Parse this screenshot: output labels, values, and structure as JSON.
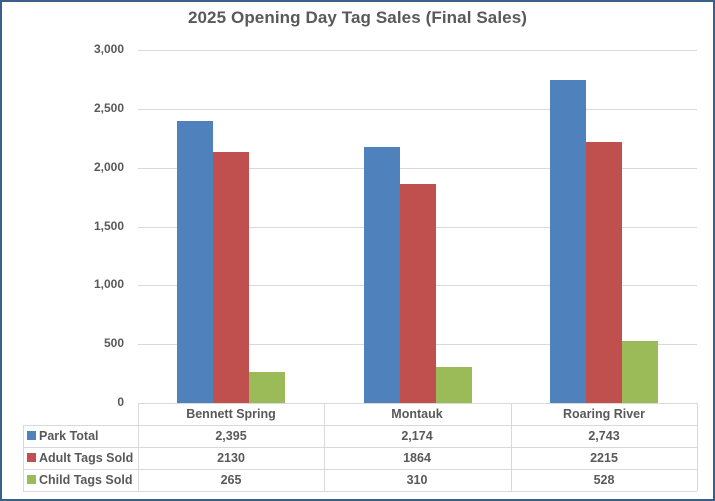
{
  "chart_data": {
    "type": "bar",
    "title": "2025 Opening Day Tag Sales (Final Sales)",
    "xlabel": "",
    "ylabel": "",
    "ylim": [
      0,
      3000
    ],
    "yticks": [
      "0",
      "500",
      "1,000",
      "1,500",
      "2,000",
      "2,500",
      "3,000"
    ],
    "grid": true,
    "legend_position": "data-table",
    "categories": [
      "Bennett Spring",
      "Montauk",
      "Roaring River"
    ],
    "series": [
      {
        "name": "Park Total",
        "color": "#4f81bd",
        "values": [
          2395,
          2174,
          2743
        ],
        "labels": [
          "2,395",
          "2,174",
          "2,743"
        ]
      },
      {
        "name": "Adult Tags Sold",
        "color": "#c0504d",
        "values": [
          2130,
          1864,
          2215
        ],
        "labels": [
          "2130",
          "1864",
          "2215"
        ]
      },
      {
        "name": "Child Tags Sold",
        "color": "#9bbb59",
        "values": [
          265,
          310,
          528
        ],
        "labels": [
          "265",
          "310",
          "528"
        ]
      }
    ]
  }
}
